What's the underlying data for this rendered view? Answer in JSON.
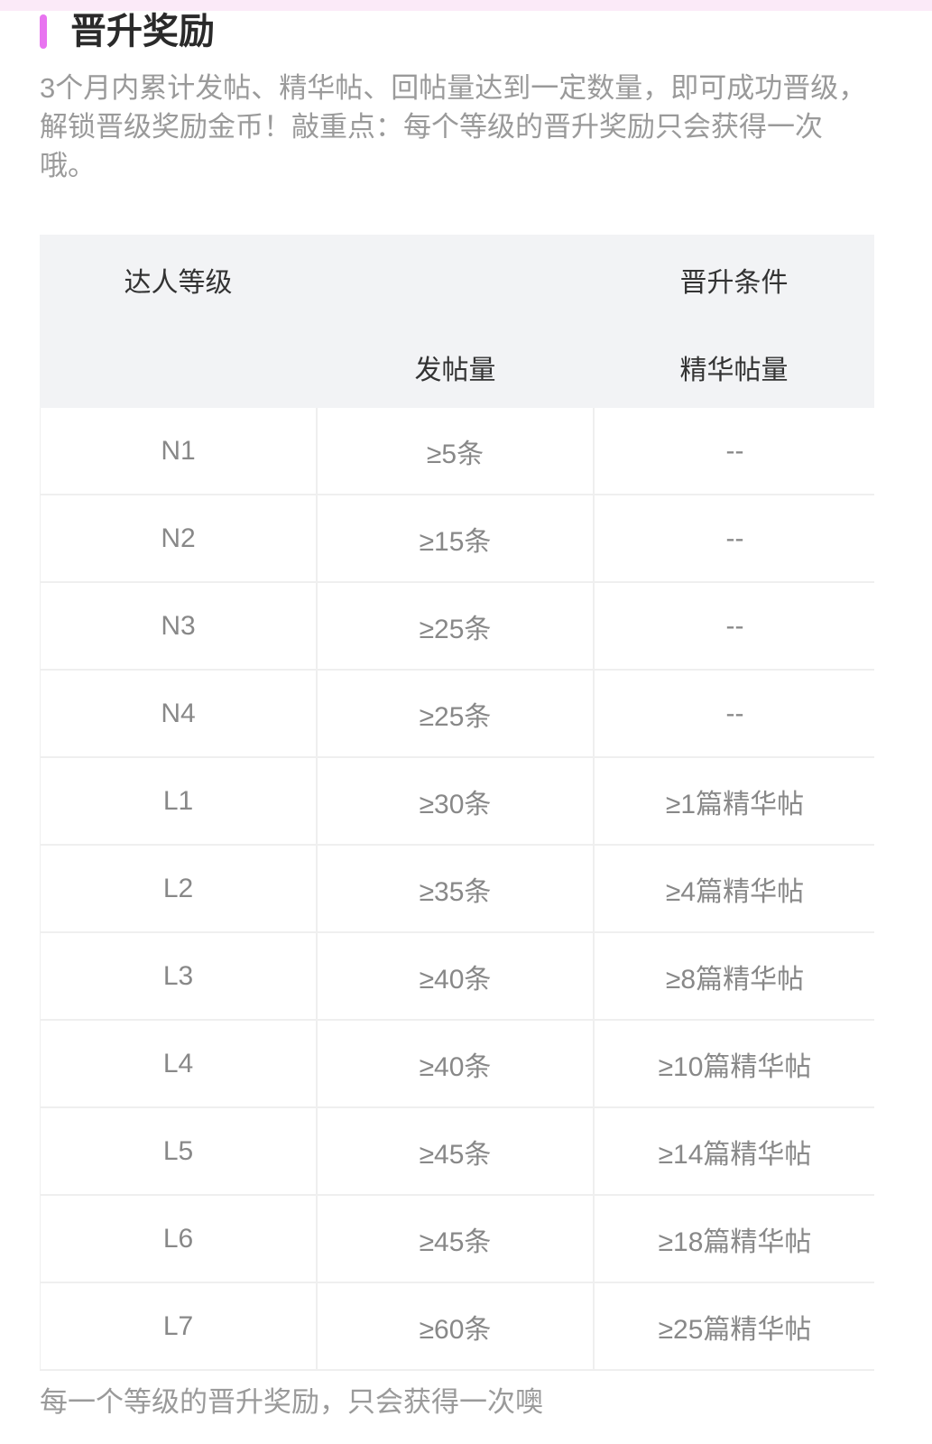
{
  "title": "晋升奖励",
  "accent": "#e874f0",
  "description": "3个月内累计发帖、精华帖、回帖量达到一定数量，即可成功晋级，解锁晋级奖励金币！敲重点：每个等级的晋升奖励只会获得一次哦。",
  "table": {
    "headers": {
      "level": "达人等级",
      "conditions": "晋升条件",
      "posts": "发帖量",
      "featured": "精华帖量"
    },
    "rows": [
      {
        "level": "N1",
        "posts": "≥5条",
        "featured": "--"
      },
      {
        "level": "N2",
        "posts": "≥15条",
        "featured": "--"
      },
      {
        "level": "N3",
        "posts": "≥25条",
        "featured": "--"
      },
      {
        "level": "N4",
        "posts": "≥25条",
        "featured": "--"
      },
      {
        "level": "L1",
        "posts": "≥30条",
        "featured": "≥1篇精华帖"
      },
      {
        "level": "L2",
        "posts": "≥35条",
        "featured": "≥4篇精华帖"
      },
      {
        "level": "L3",
        "posts": "≥40条",
        "featured": "≥8篇精华帖"
      },
      {
        "level": "L4",
        "posts": "≥40条",
        "featured": "≥10篇精华帖"
      },
      {
        "level": "L5",
        "posts": "≥45条",
        "featured": "≥14篇精华帖"
      },
      {
        "level": "L6",
        "posts": "≥45条",
        "featured": "≥18篇精华帖"
      },
      {
        "level": "L7",
        "posts": "≥60条",
        "featured": "≥25篇精华帖"
      }
    ]
  },
  "footer": "每一个等级的晋升奖励，只会获得一次噢"
}
